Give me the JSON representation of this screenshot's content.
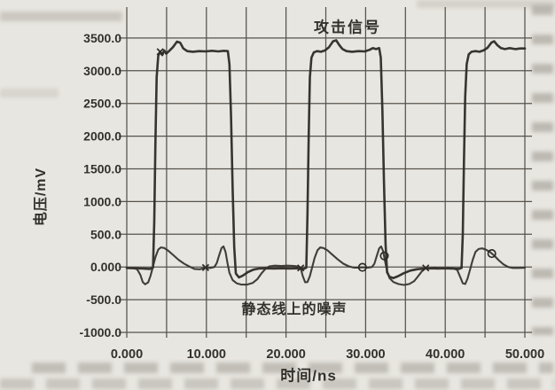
{
  "figure": {
    "kind": "scanned textbook waveform figure",
    "background_color": "#e8e6e0"
  },
  "colors": {
    "grid": "#56534c",
    "text": "#33312c",
    "curve": "#2e2b27"
  },
  "chart_data": {
    "type": "line",
    "title": "",
    "xlabel": "时间/ns",
    "ylabel": "电压/mV",
    "xlim": [
      0,
      50
    ],
    "ylim": [
      -1000,
      4000
    ],
    "grid": true,
    "grid_x_step_ns": 5,
    "grid_y_step_mv": 500,
    "legend_position": "none",
    "x_tick_values": [
      0,
      10,
      20,
      30,
      40,
      50
    ],
    "x_tick_labels": [
      "0.000",
      "10.000",
      "20.000",
      "30.000",
      "40.000",
      "50.000"
    ],
    "y_tick_values": [
      -1000,
      -500,
      0,
      500,
      1000,
      1500,
      2000,
      2500,
      3000,
      3500
    ],
    "y_tick_labels": [
      "-1000.0",
      "-500.0",
      "0.000",
      "500.0",
      "1000.0",
      "1500.0",
      "2000.0",
      "2500.0",
      "3000.0",
      "3500.0"
    ],
    "annotations": [
      {
        "id": "attack-signal-label",
        "text": "攻击信号",
        "x_ns": 27.7,
        "y_mv": 3690
      },
      {
        "id": "static-noise-label",
        "text": "静态线上的噪声",
        "x_ns": 21.2,
        "y_mv": -620
      }
    ],
    "series": [
      {
        "id": "attack-signal",
        "name": "攻击信号",
        "color": "#2e2b27",
        "width": 2.6,
        "points": [
          [
            0,
            -15
          ],
          [
            1,
            -20
          ],
          [
            2,
            -25
          ],
          [
            2.9,
            -30
          ],
          [
            3.3,
            -10
          ],
          [
            3.45,
            700
          ],
          [
            3.6,
            1900
          ],
          [
            3.75,
            2900
          ],
          [
            3.95,
            3230
          ],
          [
            4.2,
            3290
          ],
          [
            4.45,
            3240
          ],
          [
            4.7,
            3310
          ],
          [
            4.95,
            3260
          ],
          [
            5.3,
            3300
          ],
          [
            5.8,
            3360
          ],
          [
            6.3,
            3445
          ],
          [
            6.7,
            3430
          ],
          [
            7.1,
            3340
          ],
          [
            7.6,
            3300
          ],
          [
            8.3,
            3290
          ],
          [
            9.1,
            3300
          ],
          [
            9.9,
            3295
          ],
          [
            10.7,
            3305
          ],
          [
            11.5,
            3295
          ],
          [
            12.2,
            3305
          ],
          [
            12.7,
            3300
          ],
          [
            12.9,
            3100
          ],
          [
            13.1,
            2300
          ],
          [
            13.3,
            1200
          ],
          [
            13.5,
            300
          ],
          [
            13.7,
            -100
          ],
          [
            14.1,
            -160
          ],
          [
            14.6,
            -130
          ],
          [
            15.2,
            -80
          ],
          [
            15.9,
            -40
          ],
          [
            16.6,
            -25
          ],
          [
            17.5,
            -20
          ],
          [
            18.5,
            -25
          ],
          [
            19.5,
            -20
          ],
          [
            20.5,
            -25
          ],
          [
            21.4,
            -20
          ],
          [
            22.2,
            -30
          ],
          [
            22.55,
            -10
          ],
          [
            22.7,
            800
          ],
          [
            22.85,
            2000
          ],
          [
            23.0,
            2900
          ],
          [
            23.2,
            3200
          ],
          [
            23.5,
            3280
          ],
          [
            23.9,
            3300
          ],
          [
            24.4,
            3290
          ],
          [
            24.9,
            3310
          ],
          [
            25.4,
            3360
          ],
          [
            25.9,
            3450
          ],
          [
            26.3,
            3465
          ],
          [
            26.7,
            3390
          ],
          [
            27.1,
            3330
          ],
          [
            27.6,
            3300
          ],
          [
            28.3,
            3290
          ],
          [
            29.1,
            3300
          ],
          [
            29.9,
            3295
          ],
          [
            30.5,
            3320
          ],
          [
            30.9,
            3345
          ],
          [
            31.3,
            3330
          ],
          [
            31.7,
            3345
          ],
          [
            31.9,
            3200
          ],
          [
            32.1,
            2400
          ],
          [
            32.3,
            1300
          ],
          [
            32.5,
            350
          ],
          [
            32.7,
            -80
          ],
          [
            33.0,
            -150
          ],
          [
            33.5,
            -170
          ],
          [
            34.1,
            -140
          ],
          [
            34.8,
            -95
          ],
          [
            35.6,
            -55
          ],
          [
            36.4,
            -35
          ],
          [
            37.3,
            -25
          ],
          [
            38.2,
            -20
          ],
          [
            39.1,
            -25
          ],
          [
            40.0,
            -20
          ],
          [
            40.9,
            -25
          ],
          [
            41.7,
            -30
          ],
          [
            42.05,
            -15
          ],
          [
            42.2,
            500
          ],
          [
            42.35,
            1600
          ],
          [
            42.5,
            2600
          ],
          [
            42.7,
            3100
          ],
          [
            42.95,
            3250
          ],
          [
            43.3,
            3290
          ],
          [
            43.8,
            3300
          ],
          [
            44.3,
            3290
          ],
          [
            44.8,
            3310
          ],
          [
            45.3,
            3350
          ],
          [
            45.8,
            3430
          ],
          [
            46.15,
            3450
          ],
          [
            46.55,
            3390
          ],
          [
            47.0,
            3345
          ],
          [
            47.5,
            3330
          ],
          [
            48.1,
            3345
          ],
          [
            48.8,
            3330
          ],
          [
            49.4,
            3340
          ],
          [
            50,
            3340
          ]
        ]
      },
      {
        "id": "static-line-noise",
        "name": "静态线上的噪声",
        "color": "#383530",
        "width": 2.1,
        "points": [
          [
            0,
            -10
          ],
          [
            0.7,
            -15
          ],
          [
            1.3,
            -35
          ],
          [
            1.7,
            -120
          ],
          [
            2.0,
            -230
          ],
          [
            2.3,
            -265
          ],
          [
            2.7,
            -235
          ],
          [
            3.0,
            -130
          ],
          [
            3.3,
            10
          ],
          [
            3.6,
            150
          ],
          [
            3.95,
            265
          ],
          [
            4.3,
            300
          ],
          [
            4.7,
            290
          ],
          [
            5.2,
            250
          ],
          [
            5.8,
            185
          ],
          [
            6.5,
            110
          ],
          [
            7.2,
            50
          ],
          [
            7.9,
            5
          ],
          [
            8.5,
            -30
          ],
          [
            9.2,
            -35
          ],
          [
            9.9,
            -10
          ],
          [
            10.5,
            -15
          ],
          [
            11.0,
            0
          ],
          [
            11.3,
            60
          ],
          [
            11.6,
            180
          ],
          [
            11.9,
            290
          ],
          [
            12.15,
            315
          ],
          [
            12.4,
            230
          ],
          [
            12.65,
            60
          ],
          [
            12.9,
            -90
          ],
          [
            13.3,
            -200
          ],
          [
            13.8,
            -250
          ],
          [
            14.4,
            -270
          ],
          [
            15.1,
            -270
          ],
          [
            15.8,
            -245
          ],
          [
            16.4,
            -185
          ],
          [
            16.9,
            -100
          ],
          [
            17.4,
            -30
          ],
          [
            17.9,
            10
          ],
          [
            18.6,
            20
          ],
          [
            19.4,
            15
          ],
          [
            20.2,
            20
          ],
          [
            21.0,
            15
          ],
          [
            21.6,
            5
          ],
          [
            21.85,
            -20
          ],
          [
            22.1,
            -140
          ],
          [
            22.4,
            -235
          ],
          [
            22.7,
            -230
          ],
          [
            23.0,
            -140
          ],
          [
            23.3,
            0
          ],
          [
            23.6,
            140
          ],
          [
            23.95,
            255
          ],
          [
            24.3,
            300
          ],
          [
            24.7,
            290
          ],
          [
            25.2,
            255
          ],
          [
            25.8,
            190
          ],
          [
            26.5,
            115
          ],
          [
            27.2,
            50
          ],
          [
            27.9,
            10
          ],
          [
            28.5,
            -10
          ],
          [
            29.1,
            -10
          ],
          [
            29.6,
            -5
          ],
          [
            30.3,
            -10
          ],
          [
            30.8,
            0
          ],
          [
            31.1,
            50
          ],
          [
            31.4,
            170
          ],
          [
            31.7,
            285
          ],
          [
            31.95,
            315
          ],
          [
            32.2,
            240
          ],
          [
            32.45,
            80
          ],
          [
            32.7,
            -60
          ],
          [
            33.0,
            -170
          ],
          [
            33.5,
            -230
          ],
          [
            34.1,
            -260
          ],
          [
            34.8,
            -275
          ],
          [
            35.5,
            -260
          ],
          [
            36.1,
            -215
          ],
          [
            36.6,
            -140
          ],
          [
            37.1,
            -60
          ],
          [
            37.55,
            -15
          ],
          [
            38.0,
            -20
          ],
          [
            38.7,
            -10
          ],
          [
            39.5,
            -20
          ],
          [
            40.3,
            -15
          ],
          [
            41.0,
            -20
          ],
          [
            41.5,
            -45
          ],
          [
            41.9,
            -160
          ],
          [
            42.2,
            -250
          ],
          [
            42.5,
            -260
          ],
          [
            42.8,
            -180
          ],
          [
            43.1,
            -50
          ],
          [
            43.45,
            110
          ],
          [
            43.8,
            230
          ],
          [
            44.2,
            275
          ],
          [
            44.65,
            285
          ],
          [
            45.1,
            265
          ],
          [
            45.6,
            230
          ],
          [
            46.1,
            180
          ],
          [
            46.7,
            105
          ],
          [
            47.3,
            40
          ],
          [
            47.9,
            0
          ],
          [
            48.5,
            -15
          ],
          [
            49.2,
            -15
          ],
          [
            50,
            -12
          ]
        ]
      }
    ],
    "markers": [
      {
        "shape": "x",
        "x_ns": 4.2,
        "y_mv": 3290
      },
      {
        "shape": "x",
        "x_ns": 9.9,
        "y_mv": -10
      },
      {
        "shape": "x",
        "x_ns": 21.85,
        "y_mv": -15
      },
      {
        "shape": "o",
        "x_ns": 29.6,
        "y_mv": -5
      },
      {
        "shape": "o",
        "x_ns": 32.35,
        "y_mv": 170
      },
      {
        "shape": "x",
        "x_ns": 37.55,
        "y_mv": -15
      },
      {
        "shape": "o",
        "x_ns": 45.85,
        "y_mv": 205
      }
    ]
  }
}
